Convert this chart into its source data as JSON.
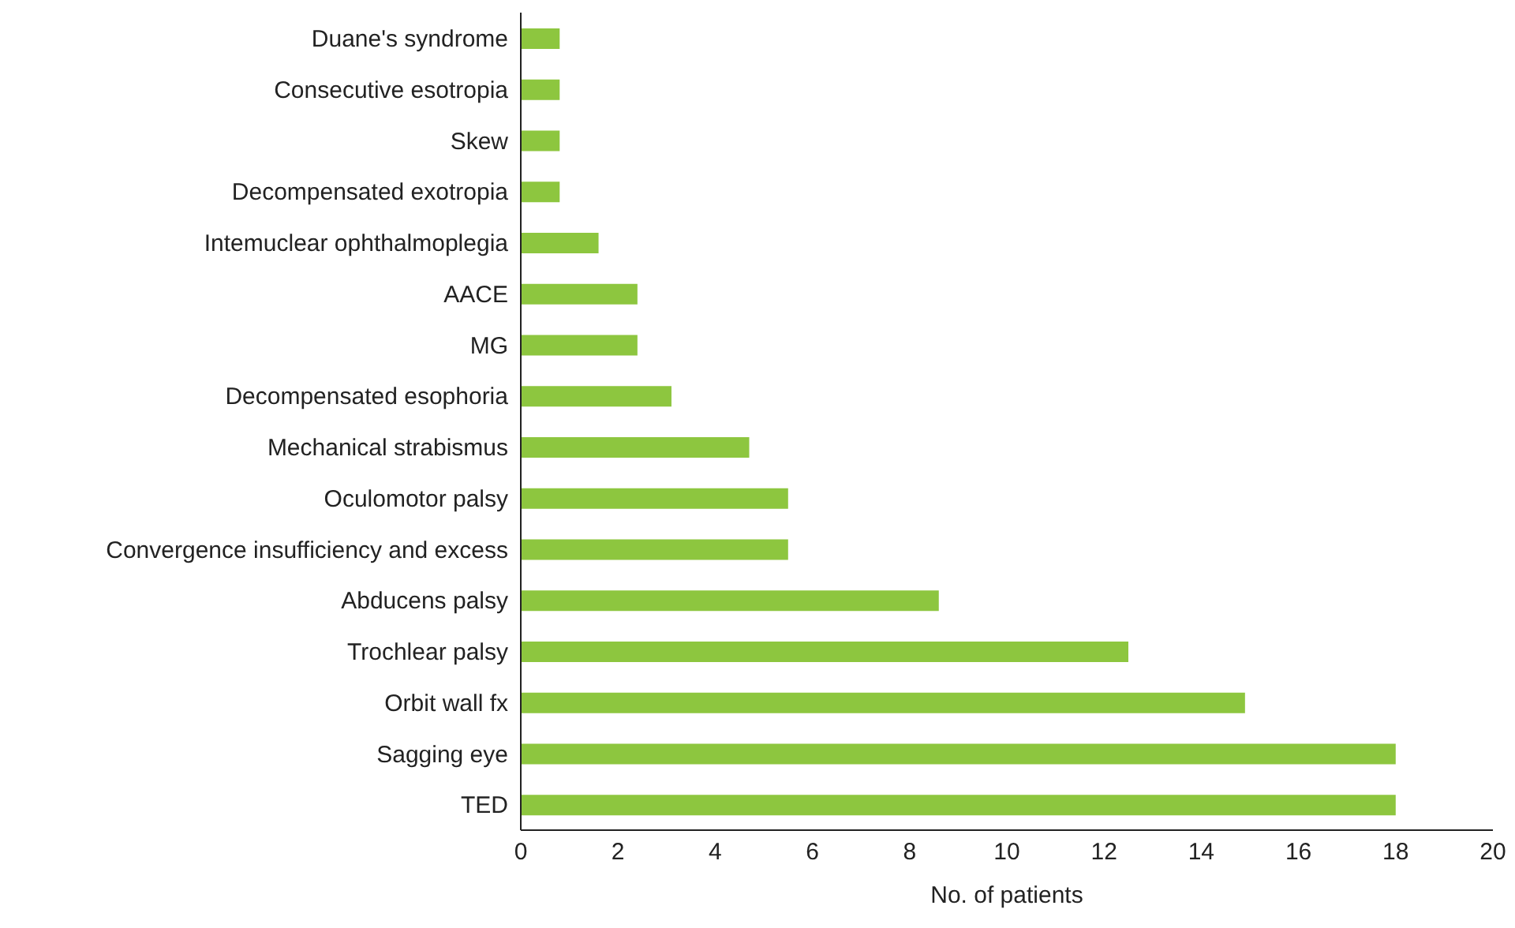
{
  "chart_data": {
    "type": "bar",
    "orientation": "horizontal",
    "xlabel": "No. of patients",
    "categories": [
      "Duane's syndrome",
      "Consecutive esotropia",
      "Skew",
      "Decompensated exotropia",
      "Intemuclear ophthalmoplegia",
      "AACE",
      "MG",
      "Decompensated esophoria",
      "Mechanical strabismus",
      "Oculomotor palsy",
      "Convergence insufficiency and excess",
      "Abducens palsy",
      "Trochlear palsy",
      "Orbit wall fx",
      "Sagging eye",
      "TED"
    ],
    "values": [
      0.8,
      0.8,
      0.8,
      0.8,
      1.6,
      2.4,
      2.4,
      3.1,
      4.7,
      5.5,
      5.5,
      8.6,
      12.5,
      14.9,
      18.0,
      18.0
    ],
    "color": "#8dc63f",
    "xlim": [
      0,
      20
    ],
    "xticks": [
      0,
      2,
      4,
      6,
      8,
      10,
      12,
      14,
      16,
      18,
      20
    ],
    "grid": false
  }
}
